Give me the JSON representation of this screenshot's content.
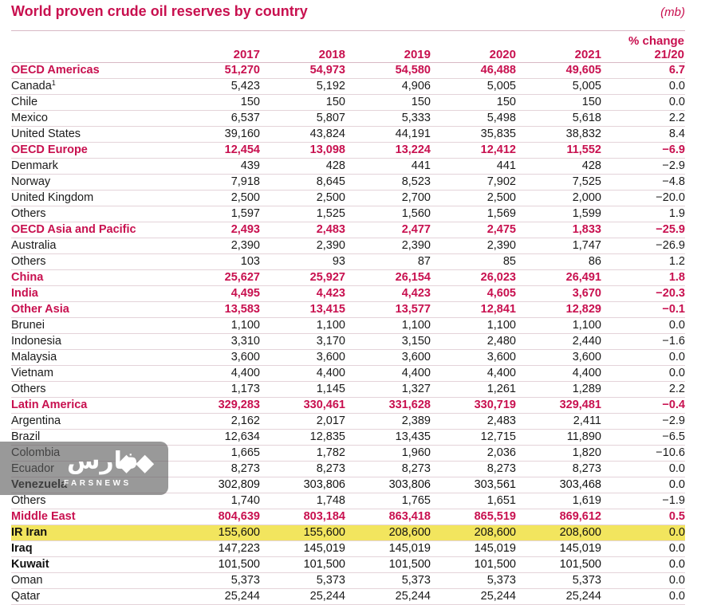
{
  "title": "World proven crude oil reserves by country",
  "unit": "(mb)",
  "columns": [
    "",
    "2017",
    "2018",
    "2019",
    "2020",
    "2021",
    "% change 21/20"
  ],
  "rows": [
    {
      "type": "region",
      "name": "OECD Americas",
      "values": [
        "51,270",
        "54,973",
        "54,580",
        "46,488",
        "49,605",
        "6.7"
      ]
    },
    {
      "type": "country",
      "name": "Canada",
      "note": "1",
      "values": [
        "5,423",
        "5,192",
        "4,906",
        "5,005",
        "5,005",
        "0.0"
      ]
    },
    {
      "type": "country",
      "name": "Chile",
      "values": [
        "150",
        "150",
        "150",
        "150",
        "150",
        "0.0"
      ]
    },
    {
      "type": "country",
      "name": "Mexico",
      "values": [
        "6,537",
        "5,807",
        "5,333",
        "5,498",
        "5,618",
        "2.2"
      ]
    },
    {
      "type": "country",
      "name": "United States",
      "values": [
        "39,160",
        "43,824",
        "44,191",
        "35,835",
        "38,832",
        "8.4"
      ]
    },
    {
      "type": "region",
      "name": "OECD Europe",
      "values": [
        "12,454",
        "13,098",
        "13,224",
        "12,412",
        "11,552",
        "−6.9"
      ]
    },
    {
      "type": "country",
      "name": "Denmark",
      "values": [
        "439",
        "428",
        "441",
        "441",
        "428",
        "−2.9"
      ]
    },
    {
      "type": "country",
      "name": "Norway",
      "values": [
        "7,918",
        "8,645",
        "8,523",
        "7,902",
        "7,525",
        "−4.8"
      ]
    },
    {
      "type": "country",
      "name": "United Kingdom",
      "values": [
        "2,500",
        "2,500",
        "2,700",
        "2,500",
        "2,000",
        "−20.0"
      ]
    },
    {
      "type": "country",
      "name": "Others",
      "values": [
        "1,597",
        "1,525",
        "1,560",
        "1,569",
        "1,599",
        "1.9"
      ]
    },
    {
      "type": "region",
      "name": "OECD Asia and Pacific",
      "values": [
        "2,493",
        "2,483",
        "2,477",
        "2,475",
        "1,833",
        "−25.9"
      ]
    },
    {
      "type": "country",
      "name": "Australia",
      "values": [
        "2,390",
        "2,390",
        "2,390",
        "2,390",
        "1,747",
        "−26.9"
      ]
    },
    {
      "type": "country",
      "name": "Others",
      "values": [
        "103",
        "93",
        "87",
        "85",
        "86",
        "1.2"
      ]
    },
    {
      "type": "region",
      "name": "China",
      "values": [
        "25,627",
        "25,927",
        "26,154",
        "26,023",
        "26,491",
        "1.8"
      ]
    },
    {
      "type": "region",
      "name": "India",
      "values": [
        "4,495",
        "4,423",
        "4,423",
        "4,605",
        "3,670",
        "−20.3"
      ]
    },
    {
      "type": "region",
      "name": "Other Asia",
      "values": [
        "13,583",
        "13,415",
        "13,577",
        "12,841",
        "12,829",
        "−0.1"
      ]
    },
    {
      "type": "country",
      "name": "Brunei",
      "values": [
        "1,100",
        "1,100",
        "1,100",
        "1,100",
        "1,100",
        "0.0"
      ]
    },
    {
      "type": "country",
      "name": "Indonesia",
      "values": [
        "3,310",
        "3,170",
        "3,150",
        "2,480",
        "2,440",
        "−1.6"
      ]
    },
    {
      "type": "country",
      "name": "Malaysia",
      "values": [
        "3,600",
        "3,600",
        "3,600",
        "3,600",
        "3,600",
        "0.0"
      ]
    },
    {
      "type": "country",
      "name": "Vietnam",
      "values": [
        "4,400",
        "4,400",
        "4,400",
        "4,400",
        "4,400",
        "0.0"
      ]
    },
    {
      "type": "country",
      "name": "Others",
      "values": [
        "1,173",
        "1,145",
        "1,327",
        "1,261",
        "1,289",
        "2.2"
      ]
    },
    {
      "type": "region",
      "name": "Latin America",
      "values": [
        "329,283",
        "330,461",
        "331,628",
        "330,719",
        "329,481",
        "−0.4"
      ]
    },
    {
      "type": "country",
      "name": "Argentina",
      "values": [
        "2,162",
        "2,017",
        "2,389",
        "2,483",
        "2,411",
        "−2.9"
      ]
    },
    {
      "type": "country",
      "name": "Brazil",
      "values": [
        "12,634",
        "12,835",
        "13,435",
        "12,715",
        "11,890",
        "−6.5"
      ]
    },
    {
      "type": "country",
      "name": "Colombia",
      "values": [
        "1,665",
        "1,782",
        "1,960",
        "2,036",
        "1,820",
        "−10.6"
      ]
    },
    {
      "type": "country",
      "name": "Ecuador",
      "values": [
        "8,273",
        "8,273",
        "8,273",
        "8,273",
        "8,273",
        "0.0"
      ]
    },
    {
      "type": "bold",
      "name": "Venezuela",
      "values": [
        "302,809",
        "303,806",
        "303,806",
        "303,561",
        "303,468",
        "0.0"
      ]
    },
    {
      "type": "country",
      "name": "Others",
      "values": [
        "1,740",
        "1,748",
        "1,765",
        "1,651",
        "1,619",
        "−1.9"
      ]
    },
    {
      "type": "region",
      "name": "Middle East",
      "values": [
        "804,639",
        "803,184",
        "863,418",
        "865,519",
        "869,612",
        "0.5"
      ]
    },
    {
      "type": "bold-hl",
      "name": "IR Iran",
      "values": [
        "155,600",
        "155,600",
        "208,600",
        "208,600",
        "208,600",
        "0.0"
      ]
    },
    {
      "type": "bold",
      "name": "Iraq",
      "values": [
        "147,223",
        "145,019",
        "145,019",
        "145,019",
        "145,019",
        "0.0"
      ]
    },
    {
      "type": "bold",
      "name": "Kuwait",
      "values": [
        "101,500",
        "101,500",
        "101,500",
        "101,500",
        "101,500",
        "0.0"
      ]
    },
    {
      "type": "country",
      "name": "Oman",
      "values": [
        "5,373",
        "5,373",
        "5,373",
        "5,373",
        "5,373",
        "0.0"
      ]
    },
    {
      "type": "country",
      "name": "Qatar",
      "values": [
        "25,244",
        "25,244",
        "25,244",
        "25,244",
        "25,244",
        "0.0"
      ]
    }
  ],
  "watermark": {
    "text_fa": "فارس",
    "text_en": "FARSNEWS",
    "icon": "fars-logo-icon"
  }
}
